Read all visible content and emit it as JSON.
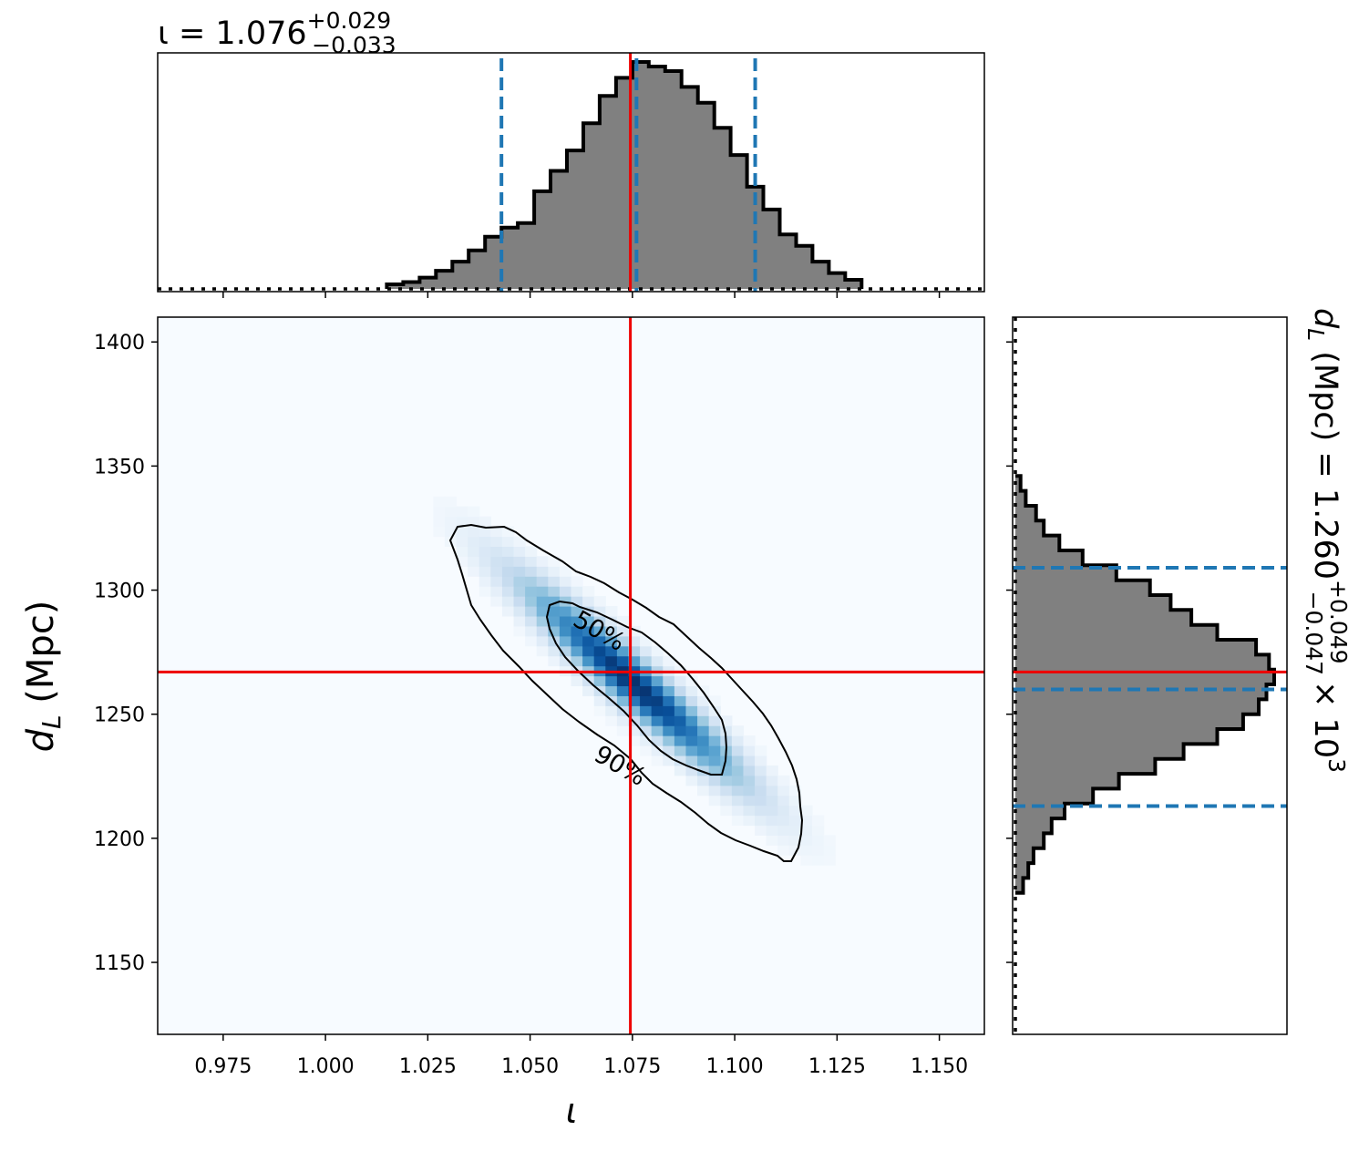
{
  "chart_data": {
    "type": "heatmap",
    "top_title": {
      "base": "ι = 1.076",
      "sup": "+0.029",
      "sub": "−0.033"
    },
    "right_title": {
      "base": "d",
      "base_sub": "L",
      "rest": " (Mpc) = 1.260",
      "sup": "+0.049",
      "sub": "−0.047",
      "tail": "× 10",
      "exp": "3"
    },
    "xlabel": "ι",
    "ylabel": {
      "base": "d",
      "sub": "L",
      "rest": " (Mpc)"
    },
    "xlim": [
      0.959,
      1.161
    ],
    "ylim": [
      1121,
      1410
    ],
    "xticks": [
      0.975,
      1.0,
      1.025,
      1.05,
      1.075,
      1.1,
      1.125,
      1.15
    ],
    "xtick_labels": [
      "0.975",
      "1.000",
      "1.025",
      "1.050",
      "1.075",
      "1.100",
      "1.125",
      "1.150"
    ],
    "yticks": [
      1150,
      1200,
      1250,
      1300,
      1350,
      1400
    ],
    "ytick_labels": [
      "1150",
      "1200",
      "1250",
      "1300",
      "1350",
      "1400"
    ],
    "truth": {
      "iota": 1.0745,
      "dL": 1267
    },
    "iota_quantiles": [
      1.043,
      1.076,
      1.105
    ],
    "dL_quantiles": [
      1213,
      1260,
      1309
    ],
    "colormap": "Blues",
    "colors": {
      "truth": "#ee0000",
      "quantile": "#1f77b4",
      "hist_fill": "#808080",
      "hist_edge": "#000000"
    },
    "contour_labels": [
      "50%",
      "90%"
    ],
    "density": {
      "mean_iota": 1.075,
      "mean_dL": 1263,
      "sd_iota": 0.016,
      "sd_dL": 24,
      "corr": -0.95
    },
    "iota_hist": {
      "bins": [
        1.015,
        1.019,
        1.023,
        1.027,
        1.031,
        1.035,
        1.039,
        1.043,
        1.047,
        1.051,
        1.055,
        1.059,
        1.063,
        1.067,
        1.071,
        1.075,
        1.079,
        1.083,
        1.087,
        1.091,
        1.095,
        1.099,
        1.103,
        1.107,
        1.111,
        1.115,
        1.119,
        1.123,
        1.127
      ],
      "values": [
        0.02,
        0.03,
        0.05,
        0.08,
        0.12,
        0.17,
        0.23,
        0.27,
        0.29,
        0.43,
        0.52,
        0.61,
        0.73,
        0.85,
        0.93,
        1.0,
        0.98,
        0.96,
        0.89,
        0.82,
        0.71,
        0.59,
        0.45,
        0.35,
        0.24,
        0.19,
        0.12,
        0.07,
        0.04
      ]
    },
    "dL_hist": {
      "bins": [
        1178,
        1184,
        1190,
        1196,
        1202,
        1208,
        1214,
        1220,
        1226,
        1232,
        1238,
        1244,
        1250,
        1256,
        1262,
        1268,
        1274,
        1280,
        1286,
        1292,
        1298,
        1304,
        1310,
        1316,
        1322,
        1328,
        1334,
        1340
      ],
      "values": [
        0.03,
        0.05,
        0.07,
        0.11,
        0.14,
        0.19,
        0.3,
        0.4,
        0.54,
        0.65,
        0.78,
        0.88,
        0.94,
        0.97,
        1.0,
        0.98,
        0.93,
        0.78,
        0.68,
        0.6,
        0.52,
        0.39,
        0.26,
        0.17,
        0.11,
        0.08,
        0.04,
        0.02
      ]
    }
  }
}
